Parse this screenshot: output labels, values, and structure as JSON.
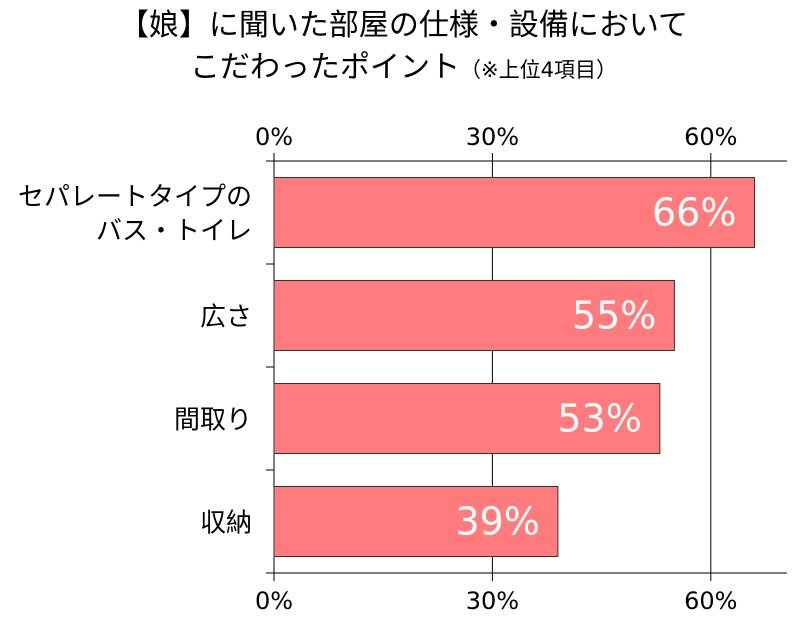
{
  "title_line1": "【娘】に聞いた部屋の仕様・設備において",
  "title_line2": "こだわったポイント",
  "title_note": "（※上位4項目）",
  "colors": {
    "bar": "#FF7B7E",
    "bar_stroke": "#333333",
    "axis": "#000000",
    "grid": "#000000"
  },
  "chart_data": {
    "type": "bar",
    "orientation": "horizontal",
    "categories": [
      [
        "セパレートタイプの",
        "バス・トイレ"
      ],
      [
        "広さ"
      ],
      [
        "間取り"
      ],
      [
        "収納"
      ]
    ],
    "values": [
      66,
      55,
      53,
      39
    ],
    "data_labels": [
      "66%",
      "55%",
      "53%",
      "39%"
    ],
    "xlim": [
      0,
      70
    ],
    "ticks": [
      0,
      30,
      60
    ],
    "tick_labels": [
      "0%",
      "30%",
      "60%"
    ],
    "tick_labels_position": "top and bottom",
    "grid": true,
    "legend": "none"
  }
}
